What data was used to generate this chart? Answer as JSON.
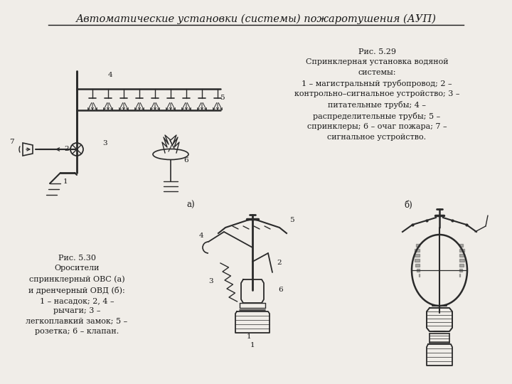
{
  "title": "Автоматические установки (системы) пожаротушения (АУП)",
  "bg_color": "#f0ede8",
  "fig_caption_right": "Рис. 5.29\nСпринклерная установка водяной\nсистемы:\n1 – магистральный трубопровод; 2 –\nконтрольно–сигнальное устройство; 3 –\nпитательные трубы; 4 –\nраспределительные трубы; 5 –\nспринклеры; 6 – очаг пожара; 7 –\nсигнальное устройство.",
  "fig_caption_left": "Рис. 5.30\nОросители\nспринклерный ОВС (а)\nи дренчерный ОВД (б):\n1 – насадок; 2, 4 –\nрычаги; 3 –\nлегкоплавкий замок; 5 –\nрозетка; 6 – клапан.",
  "text_color": "#1a1a1a",
  "line_color": "#2a2a2a"
}
